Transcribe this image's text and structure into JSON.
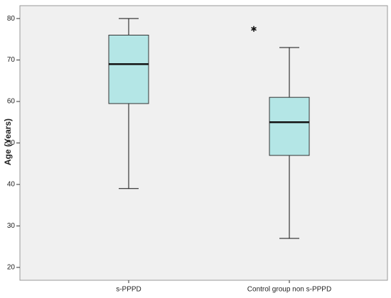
{
  "chart_data": {
    "type": "box",
    "y_label": "Age (Years)",
    "categories": [
      "s-PPPD",
      "Control group non s-PPPD"
    ],
    "boxes": [
      {
        "min": 39,
        "q1": 59.5,
        "median": 69,
        "q3": 76,
        "max": 80,
        "outliers": []
      },
      {
        "min": 27,
        "q1": 47,
        "median": 55,
        "q3": 61,
        "max": 73,
        "outliers": [
          77.5
        ]
      }
    ],
    "color": "#b4e6e6",
    "ylim": [
      16.9,
      83.1
    ],
    "yticks": [
      20,
      30,
      40,
      50,
      60,
      70,
      80
    ]
  }
}
